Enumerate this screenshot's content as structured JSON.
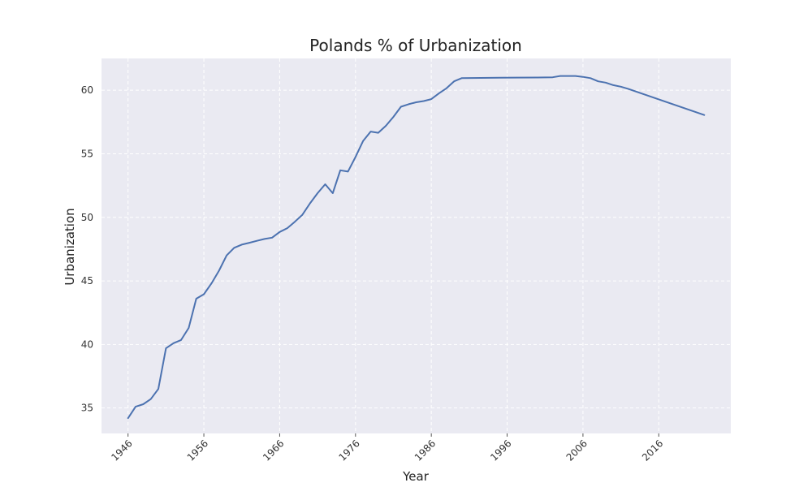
{
  "chart_data": {
    "type": "line",
    "title": "Polands % of Urbanization",
    "xlabel": "Year",
    "ylabel": "Urbanization",
    "xlim": [
      1942.5,
      2025.5
    ],
    "ylim": [
      33,
      62.5
    ],
    "x_ticks": [
      1946,
      1956,
      1966,
      1976,
      1986,
      1996,
      2006,
      2016
    ],
    "x_tick_labels": [
      "1946",
      "1956",
      "1966",
      "1976",
      "1986",
      "1996",
      "2006",
      "2016"
    ],
    "y_ticks": [
      35,
      40,
      45,
      50,
      55,
      60
    ],
    "y_tick_labels": [
      "35",
      "40",
      "45",
      "50",
      "55",
      "60"
    ],
    "grid": true,
    "line_color": "#4c72b0",
    "background_color": "#eaeaf2",
    "grid_color": "#ffffff",
    "series": [
      {
        "x": [
          1946,
          1947,
          1948,
          1949,
          1950,
          1951,
          1952,
          1953,
          1954,
          1955,
          1956,
          1957,
          1958,
          1959,
          1960,
          1961,
          1962,
          1963,
          1964,
          1965,
          1966,
          1967,
          1968,
          1969,
          1970,
          1971,
          1972,
          1973,
          1974,
          1975,
          1976,
          1977,
          1978,
          1979,
          1980,
          1981,
          1982,
          1983,
          1984,
          1985,
          1986,
          1987,
          1988,
          1989,
          1990,
          1995,
          2000,
          2002,
          2003,
          2004,
          2005,
          2006,
          2007,
          2008,
          2009,
          2010,
          2011,
          2012,
          2022
        ],
        "y": [
          34.2,
          35.1,
          35.3,
          35.7,
          36.5,
          39.7,
          40.1,
          40.35,
          41.3,
          43.6,
          43.95,
          44.8,
          45.8,
          47.0,
          47.6,
          47.85,
          48.0,
          48.15,
          48.3,
          48.4,
          48.85,
          49.15,
          49.65,
          50.2,
          51.1,
          51.9,
          52.6,
          51.9,
          53.7,
          53.6,
          54.75,
          56.0,
          56.75,
          56.65,
          57.2,
          57.9,
          58.7,
          58.9,
          59.05,
          59.15,
          59.3,
          59.75,
          60.15,
          60.7,
          60.95,
          60.98,
          61.0,
          61.02,
          61.12,
          61.12,
          61.12,
          61.05,
          60.95,
          60.7,
          60.6,
          60.4,
          60.28,
          60.1,
          58.05
        ]
      }
    ]
  }
}
